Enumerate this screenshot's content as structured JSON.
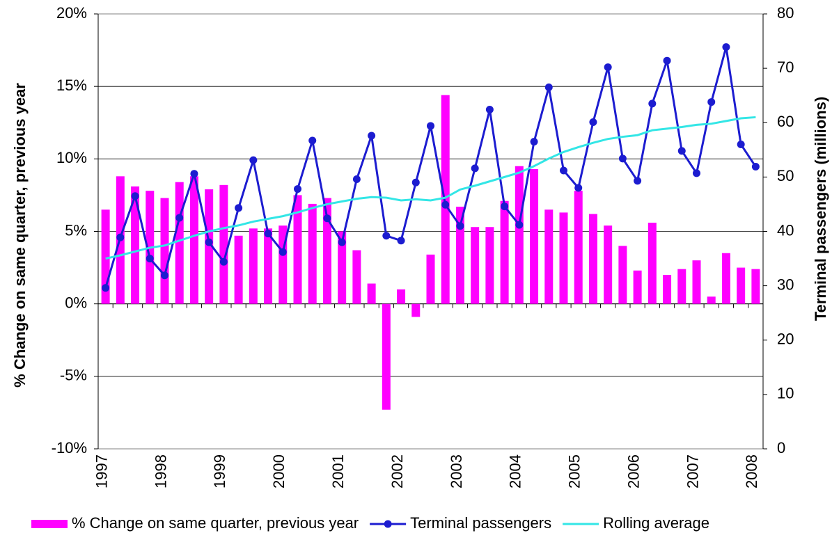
{
  "chart_data": {
    "type": "bar-line",
    "categories": [
      "1997",
      null,
      null,
      null,
      "1998",
      null,
      null,
      null,
      "1999",
      null,
      null,
      null,
      "2000",
      null,
      null,
      null,
      "2001",
      null,
      null,
      null,
      "2002",
      null,
      null,
      null,
      "2003",
      null,
      null,
      null,
      "2004",
      null,
      null,
      null,
      "2005",
      null,
      null,
      null,
      "2006",
      null,
      null,
      null,
      "2007",
      null,
      null,
      null,
      "2008"
    ],
    "series": [
      {
        "name": "% Change on same quarter, previous year",
        "type": "bar",
        "color": "#ff00ff",
        "values": [
          6.5,
          8.8,
          8.1,
          7.8,
          7.3,
          8.4,
          8.8,
          7.9,
          8.2,
          4.7,
          5.2,
          5.2,
          5.4,
          7.5,
          6.9,
          7.3,
          5.0,
          3.7,
          1.4,
          -7.3,
          1.0,
          -0.9,
          3.4,
          14.4,
          6.7,
          5.3,
          5.3,
          7.1,
          9.5,
          9.3,
          6.5,
          6.3,
          7.8,
          6.2,
          5.4,
          4.0,
          2.3,
          5.6,
          2.0,
          2.4,
          3.0,
          0.5,
          3.5,
          2.5,
          2.4
        ]
      },
      {
        "name": "Terminal passengers",
        "type": "line",
        "axis": "y2",
        "color": "#1c1cd0",
        "markers": true,
        "values": [
          29.6,
          38.9,
          46.5,
          35.0,
          31.9,
          42.5,
          50.6,
          38.0,
          34.4,
          44.3,
          53.1,
          39.6,
          36.2,
          47.8,
          56.7,
          42.4,
          38.0,
          49.6,
          57.6,
          39.2,
          38.3,
          49.0,
          59.4,
          44.9,
          41.0,
          51.6,
          62.4,
          44.6,
          41.2,
          56.5,
          66.5,
          51.2,
          48.0,
          60.1,
          70.2,
          53.4,
          49.3,
          63.5,
          71.4,
          54.8,
          50.7,
          63.8,
          73.9,
          56.0,
          51.9
        ]
      },
      {
        "name": "Rolling average",
        "type": "line",
        "axis": "y2",
        "color": "#33e6e6",
        "markers": false,
        "values": [
          35.0,
          35.6,
          36.3,
          37.0,
          37.4,
          38.3,
          39.2,
          40.0,
          40.6,
          41.1,
          41.8,
          42.3,
          42.8,
          43.5,
          44.3,
          45.0,
          45.5,
          46.0,
          46.3,
          46.2,
          45.7,
          45.9,
          45.7,
          46.2,
          47.7,
          48.4,
          49.2,
          50.0,
          50.8,
          52.0,
          53.4,
          54.6,
          55.5,
          56.3,
          57.0,
          57.4,
          57.7,
          58.6,
          58.9,
          59.2,
          59.6,
          59.8,
          60.3,
          60.8,
          61.0
        ]
      }
    ],
    "y_label": "% Change on same quarter, previous year",
    "y2_label": "Terminal passengers (millions)",
    "ylim": [
      -10,
      20
    ],
    "yticks": [
      {
        "value": -10,
        "label": "-10%"
      },
      {
        "value": -5,
        "label": "-5%"
      },
      {
        "value": 0,
        "label": "0%"
      },
      {
        "value": 5,
        "label": "5%"
      },
      {
        "value": 10,
        "label": "10%"
      },
      {
        "value": 15,
        "label": "15%"
      },
      {
        "value": 20,
        "label": "20%"
      }
    ],
    "y2lim": [
      0,
      80
    ],
    "y2ticks": [
      0,
      10,
      20,
      30,
      40,
      50,
      60,
      70,
      80
    ],
    "grid": true,
    "legend": "bottom"
  }
}
